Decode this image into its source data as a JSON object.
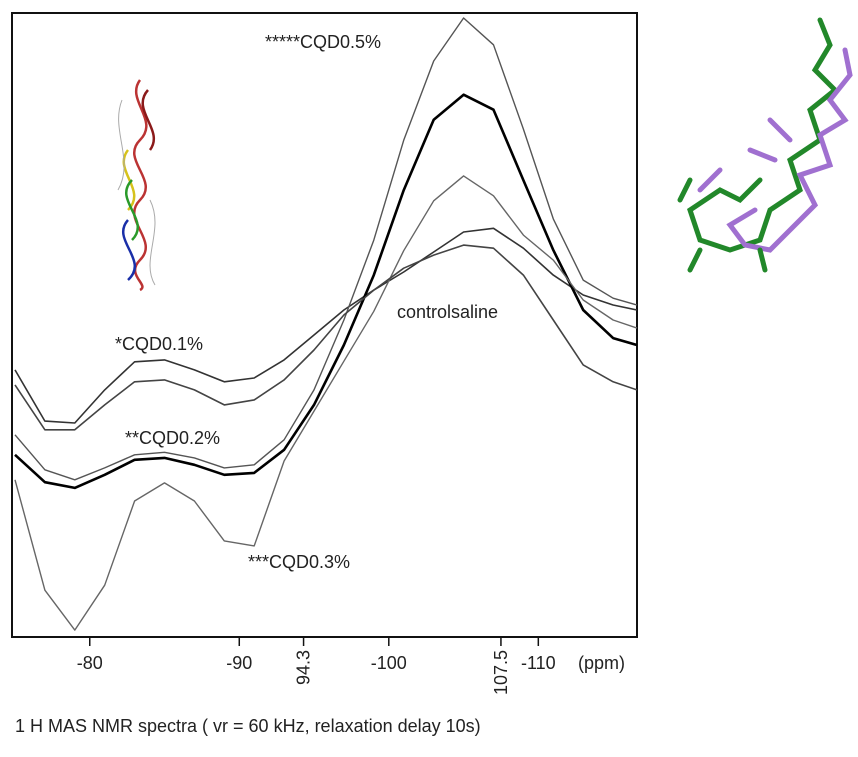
{
  "chart_data": {
    "type": "line",
    "x_unit_label": "(ppm)",
    "caption": "1 H MAS NMR spectra ( vr = 60 kHz, relaxation delay 10s)",
    "x": [
      -75,
      -77,
      -79,
      -81,
      -83,
      -85,
      -87,
      -89,
      -91,
      -93,
      -95,
      -97,
      -99,
      -101,
      -103,
      -105,
      -107,
      -109,
      -111,
      -113,
      -115,
      -116.6
    ],
    "xlim": [
      -74.8,
      -116.6
    ],
    "xticks": [
      -80,
      -90,
      -100,
      -110,
      {
        "value": -94.3,
        "label": "94.3"
      },
      {
        "value": -107.5,
        "label": "107.5"
      }
    ],
    "ylim": [
      0,
      100
    ],
    "series": [
      {
        "name": "*CQD0.1%",
        "color": "#333333",
        "values": [
          42.8,
          34.6,
          34.3,
          39.6,
          44.1,
          44.4,
          42.8,
          40.9,
          41.5,
          44.4,
          48.4,
          52.4,
          55.6,
          58.5,
          61.7,
          64.9,
          65.5,
          62.3,
          58.0,
          54.8,
          53.2,
          52.4
        ]
      },
      {
        "name": "**CQD0.2%",
        "color": "#000000",
        "values": [
          29.2,
          24.8,
          23.9,
          26.0,
          28.4,
          28.7,
          27.6,
          26.0,
          26.3,
          30.0,
          37.2,
          46.8,
          58.0,
          71.6,
          82.9,
          86.9,
          84.5,
          73.2,
          62.0,
          52.4,
          47.9,
          46.8
        ]
      },
      {
        "name": "***CQD0.3%",
        "color": "#666666",
        "values": [
          25.2,
          7.5,
          1.1,
          8.3,
          21.8,
          24.7,
          21.8,
          15.4,
          14.6,
          28.2,
          36.2,
          44.2,
          52.2,
          61.9,
          69.9,
          73.9,
          70.7,
          64.4,
          60.4,
          54.0,
          50.8,
          49.5
        ]
      },
      {
        "name": "*****CQD0.5%",
        "color": "#555555",
        "values": [
          32.4,
          26.8,
          25.2,
          27.1,
          29.2,
          29.6,
          28.7,
          27.1,
          27.6,
          31.6,
          39.6,
          50.8,
          63.6,
          79.6,
          92.3,
          99.2,
          94.9,
          81.4,
          67.0,
          57.2,
          54.3,
          53.2
        ]
      },
      {
        "name": "controlsaline",
        "color": "#444444",
        "values": [
          40.4,
          33.2,
          33.2,
          37.2,
          40.9,
          41.2,
          39.6,
          37.2,
          38.0,
          41.2,
          46.0,
          51.6,
          55.6,
          59.1,
          61.2,
          62.8,
          62.3,
          58.0,
          50.8,
          43.6,
          40.9,
          39.6
        ]
      }
    ]
  }
}
